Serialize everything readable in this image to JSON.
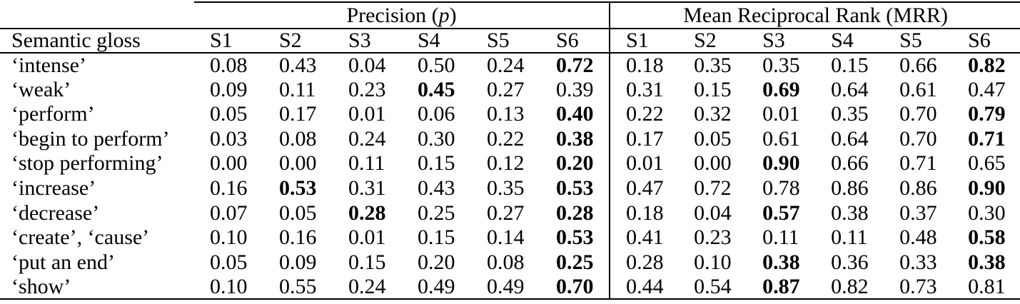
{
  "table": {
    "groups": {
      "precision": {
        "pre": "Precision (",
        "var": "p",
        "post": ")"
      },
      "mrr": "Mean Reciprocal Rank (MRR)"
    },
    "row_header": "Semantic gloss",
    "sub_headers": [
      "S1",
      "S2",
      "S3",
      "S4",
      "S5",
      "S6"
    ],
    "rows": [
      {
        "gloss": "‘intense’",
        "p": [
          "0.08",
          "0.43",
          "0.04",
          "0.50",
          "0.24",
          "0.72"
        ],
        "p_bold": [
          0,
          0,
          0,
          0,
          0,
          1
        ],
        "m": [
          "0.18",
          "0.35",
          "0.35",
          "0.15",
          "0.66",
          "0.82"
        ],
        "m_bold": [
          0,
          0,
          0,
          0,
          0,
          1
        ]
      },
      {
        "gloss": "‘weak’",
        "p": [
          "0.09",
          "0.11",
          "0.23",
          "0.45",
          "0.27",
          "0.39"
        ],
        "p_bold": [
          0,
          0,
          0,
          1,
          0,
          0
        ],
        "m": [
          "0.31",
          "0.15",
          "0.69",
          "0.64",
          "0.61",
          "0.47"
        ],
        "m_bold": [
          0,
          0,
          1,
          0,
          0,
          0
        ]
      },
      {
        "gloss": "‘perform’",
        "p": [
          "0.05",
          "0.17",
          "0.01",
          "0.06",
          "0.13",
          "0.40"
        ],
        "p_bold": [
          0,
          0,
          0,
          0,
          0,
          1
        ],
        "m": [
          "0.22",
          "0.32",
          "0.01",
          "0.35",
          "0.70",
          "0.79"
        ],
        "m_bold": [
          0,
          0,
          0,
          0,
          0,
          1
        ]
      },
      {
        "gloss": "‘begin to perform’",
        "p": [
          "0.03",
          "0.08",
          "0.24",
          "0.30",
          "0.22",
          "0.38"
        ],
        "p_bold": [
          0,
          0,
          0,
          0,
          0,
          1
        ],
        "m": [
          "0.17",
          "0.05",
          "0.61",
          "0.64",
          "0.70",
          "0.71"
        ],
        "m_bold": [
          0,
          0,
          0,
          0,
          0,
          1
        ]
      },
      {
        "gloss": "‘stop performing’",
        "p": [
          "0.00",
          "0.00",
          "0.11",
          "0.15",
          "0.12",
          "0.20"
        ],
        "p_bold": [
          0,
          0,
          0,
          0,
          0,
          1
        ],
        "m": [
          "0.01",
          "0.00",
          "0.90",
          "0.66",
          "0.71",
          "0.65"
        ],
        "m_bold": [
          0,
          0,
          1,
          0,
          0,
          0
        ]
      },
      {
        "gloss": "‘increase’",
        "p": [
          "0.16",
          "0.53",
          "0.31",
          "0.43",
          "0.35",
          "0.53"
        ],
        "p_bold": [
          0,
          1,
          0,
          0,
          0,
          1
        ],
        "m": [
          "0.47",
          "0.72",
          "0.78",
          "0.86",
          "0.86",
          "0.90"
        ],
        "m_bold": [
          0,
          0,
          0,
          0,
          0,
          1
        ]
      },
      {
        "gloss": "‘decrease’",
        "p": [
          "0.07",
          "0.05",
          "0.28",
          "0.25",
          "0.27",
          "0.28"
        ],
        "p_bold": [
          0,
          0,
          1,
          0,
          0,
          1
        ],
        "m": [
          "0.18",
          "0.04",
          "0.57",
          "0.38",
          "0.37",
          "0.30"
        ],
        "m_bold": [
          0,
          0,
          1,
          0,
          0,
          0
        ]
      },
      {
        "gloss": "‘create’, ‘cause’",
        "p": [
          "0.10",
          "0.16",
          "0.01",
          "0.15",
          "0.14",
          "0.53"
        ],
        "p_bold": [
          0,
          0,
          0,
          0,
          0,
          1
        ],
        "m": [
          "0.41",
          "0.23",
          "0.11",
          "0.11",
          "0.48",
          "0.58"
        ],
        "m_bold": [
          0,
          0,
          0,
          0,
          0,
          1
        ]
      },
      {
        "gloss": "‘put an end’",
        "p": [
          "0.05",
          "0.09",
          "0.15",
          "0.20",
          "0.08",
          "0.25"
        ],
        "p_bold": [
          0,
          0,
          0,
          0,
          0,
          1
        ],
        "m": [
          "0.28",
          "0.10",
          "0.38",
          "0.36",
          "0.33",
          "0.38"
        ],
        "m_bold": [
          0,
          0,
          1,
          0,
          0,
          1
        ]
      },
      {
        "gloss": "‘show’",
        "p": [
          "0.10",
          "0.55",
          "0.24",
          "0.49",
          "0.49",
          "0.70"
        ],
        "p_bold": [
          0,
          0,
          0,
          0,
          0,
          1
        ],
        "m": [
          "0.44",
          "0.54",
          "0.87",
          "0.82",
          "0.73",
          "0.81"
        ],
        "m_bold": [
          0,
          0,
          1,
          0,
          0,
          0
        ]
      }
    ]
  },
  "colors": {
    "text": "#000000",
    "background": "#ffffff",
    "rule": "#000000"
  }
}
